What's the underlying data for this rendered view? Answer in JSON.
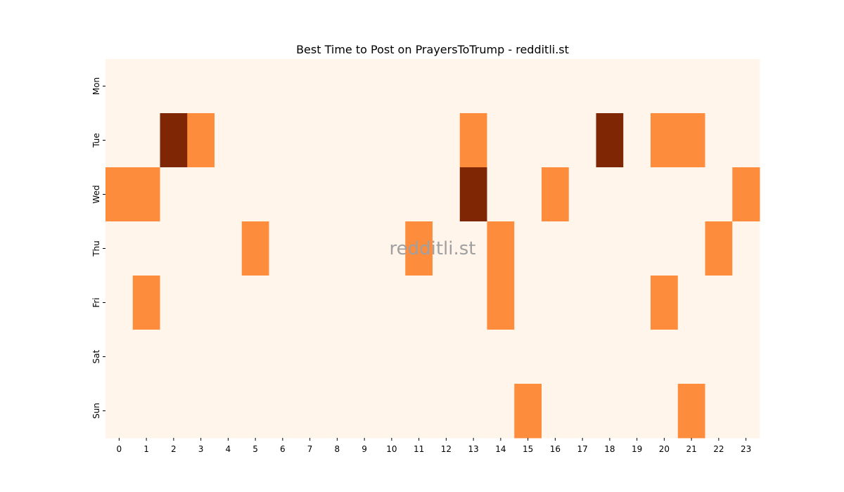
{
  "chart_data": {
    "type": "heatmap",
    "title": "Best Time to Post on PrayersToTrump - redditli.st",
    "xlabel": "",
    "ylabel": "",
    "x_categories": [
      "0",
      "1",
      "2",
      "3",
      "4",
      "5",
      "6",
      "7",
      "8",
      "9",
      "10",
      "11",
      "12",
      "13",
      "14",
      "15",
      "16",
      "17",
      "18",
      "19",
      "20",
      "21",
      "22",
      "23"
    ],
    "y_categories": [
      "Mon",
      "Tue",
      "Wed",
      "Thu",
      "Fri",
      "Sat",
      "Sun"
    ],
    "values": [
      [
        0,
        0,
        0,
        0,
        0,
        0,
        0,
        0,
        0,
        0,
        0,
        0,
        0,
        0,
        0,
        0,
        0,
        0,
        0,
        0,
        0,
        0,
        0,
        0
      ],
      [
        0,
        0,
        2,
        1,
        0,
        0,
        0,
        0,
        0,
        0,
        0,
        0,
        0,
        1,
        0,
        0,
        0,
        0,
        2,
        0,
        1,
        1,
        0,
        0
      ],
      [
        1,
        1,
        0,
        0,
        0,
        0,
        0,
        0,
        0,
        0,
        0,
        0,
        0,
        2,
        0,
        0,
        1,
        0,
        0,
        0,
        0,
        0,
        0,
        1
      ],
      [
        0,
        0,
        0,
        0,
        0,
        1,
        0,
        0,
        0,
        0,
        0,
        1,
        0,
        0,
        1,
        0,
        0,
        0,
        0,
        0,
        0,
        0,
        1,
        0
      ],
      [
        0,
        1,
        0,
        0,
        0,
        0,
        0,
        0,
        0,
        0,
        0,
        0,
        0,
        0,
        1,
        0,
        0,
        0,
        0,
        0,
        1,
        0,
        0,
        0
      ],
      [
        0,
        0,
        0,
        0,
        0,
        0,
        0,
        0,
        0,
        0,
        0,
        0,
        0,
        0,
        0,
        0,
        0,
        0,
        0,
        0,
        0,
        0,
        0,
        0
      ],
      [
        0,
        0,
        0,
        0,
        0,
        0,
        0,
        0,
        0,
        0,
        0,
        0,
        0,
        0,
        0,
        1,
        0,
        0,
        0,
        0,
        0,
        1,
        0,
        0
      ]
    ],
    "colormap": [
      "#fff5eb",
      "#fd8d3c",
      "#7f2704"
    ],
    "watermark": "redditli.st",
    "grid": false,
    "colorbar": false
  }
}
